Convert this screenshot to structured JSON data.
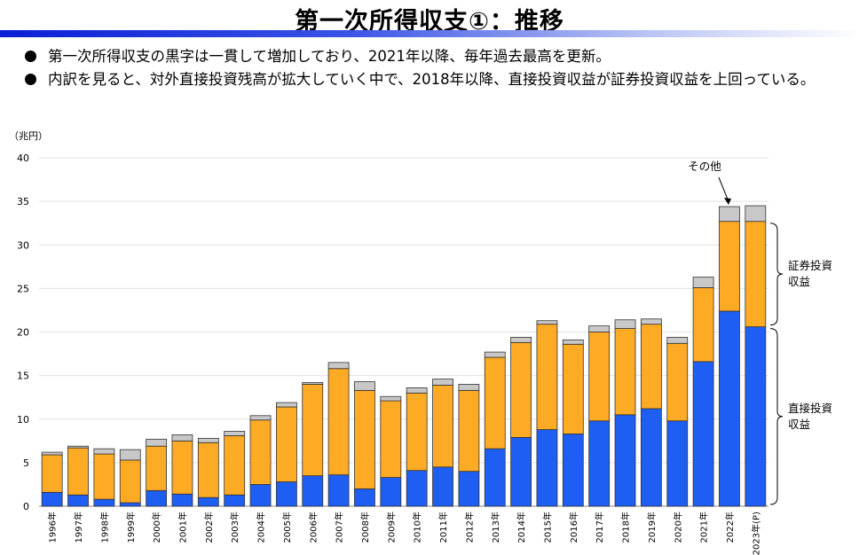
{
  "page": {
    "title": "第一次所得収支①：推移",
    "bullets": [
      "第一次所得収支の黒字は一貫して増加しており、2021年以降、毎年過去最高を更新。",
      "内訳を見ると、対外直接投資残高が拡大していく中で、2018年以降、直接投資収益が証券投資収益を上回っている。"
    ]
  },
  "chart_data": {
    "type": "bar",
    "stacked": true,
    "unit_label": "（兆円）",
    "ylim": [
      0,
      40
    ],
    "yticks": [
      0,
      5,
      10,
      15,
      20,
      25,
      30,
      35,
      40
    ],
    "grid": true,
    "categories": [
      "1996年",
      "1997年",
      "1998年",
      "1999年",
      "2000年",
      "2001年",
      "2002年",
      "2003年",
      "2004年",
      "2005年",
      "2006年",
      "2007年",
      "2008年",
      "2009年",
      "2010年",
      "2011年",
      "2012年",
      "2013年",
      "2014年",
      "2015年",
      "2016年",
      "2017年",
      "2018年",
      "2019年",
      "2020年",
      "2021年",
      "2022年",
      "2023年(P)"
    ],
    "series": [
      {
        "name": "直接投資収益",
        "color": "#1f5ef2",
        "values": [
          1.6,
          1.3,
          0.8,
          0.4,
          1.8,
          1.4,
          1.0,
          1.3,
          2.5,
          2.8,
          3.5,
          3.6,
          2.0,
          3.3,
          4.1,
          4.5,
          4.0,
          6.6,
          7.9,
          8.8,
          8.3,
          9.8,
          10.5,
          11.2,
          9.8,
          16.6,
          22.4,
          20.6
        ]
      },
      {
        "name": "証券投資収益",
        "color": "#fdaa25",
        "values": [
          4.3,
          5.4,
          5.2,
          4.9,
          5.1,
          6.1,
          6.3,
          6.8,
          7.4,
          8.6,
          10.5,
          12.2,
          11.3,
          8.8,
          8.9,
          9.4,
          9.3,
          10.5,
          10.9,
          12.1,
          10.3,
          10.2,
          9.9,
          9.7,
          8.9,
          8.5,
          10.3,
          12.1
        ]
      },
      {
        "name": "その他",
        "color": "#c8c8c8",
        "values": [
          0.3,
          0.2,
          0.6,
          1.2,
          0.8,
          0.7,
          0.5,
          0.5,
          0.5,
          0.5,
          0.2,
          0.7,
          1.0,
          0.5,
          0.6,
          0.7,
          0.7,
          0.6,
          0.6,
          0.4,
          0.5,
          0.7,
          1.0,
          0.6,
          0.7,
          1.2,
          1.7,
          1.8
        ]
      }
    ],
    "annotations": {
      "other": "その他",
      "securities": "証券投資\n収益",
      "direct": "直接投資\n収益"
    }
  }
}
